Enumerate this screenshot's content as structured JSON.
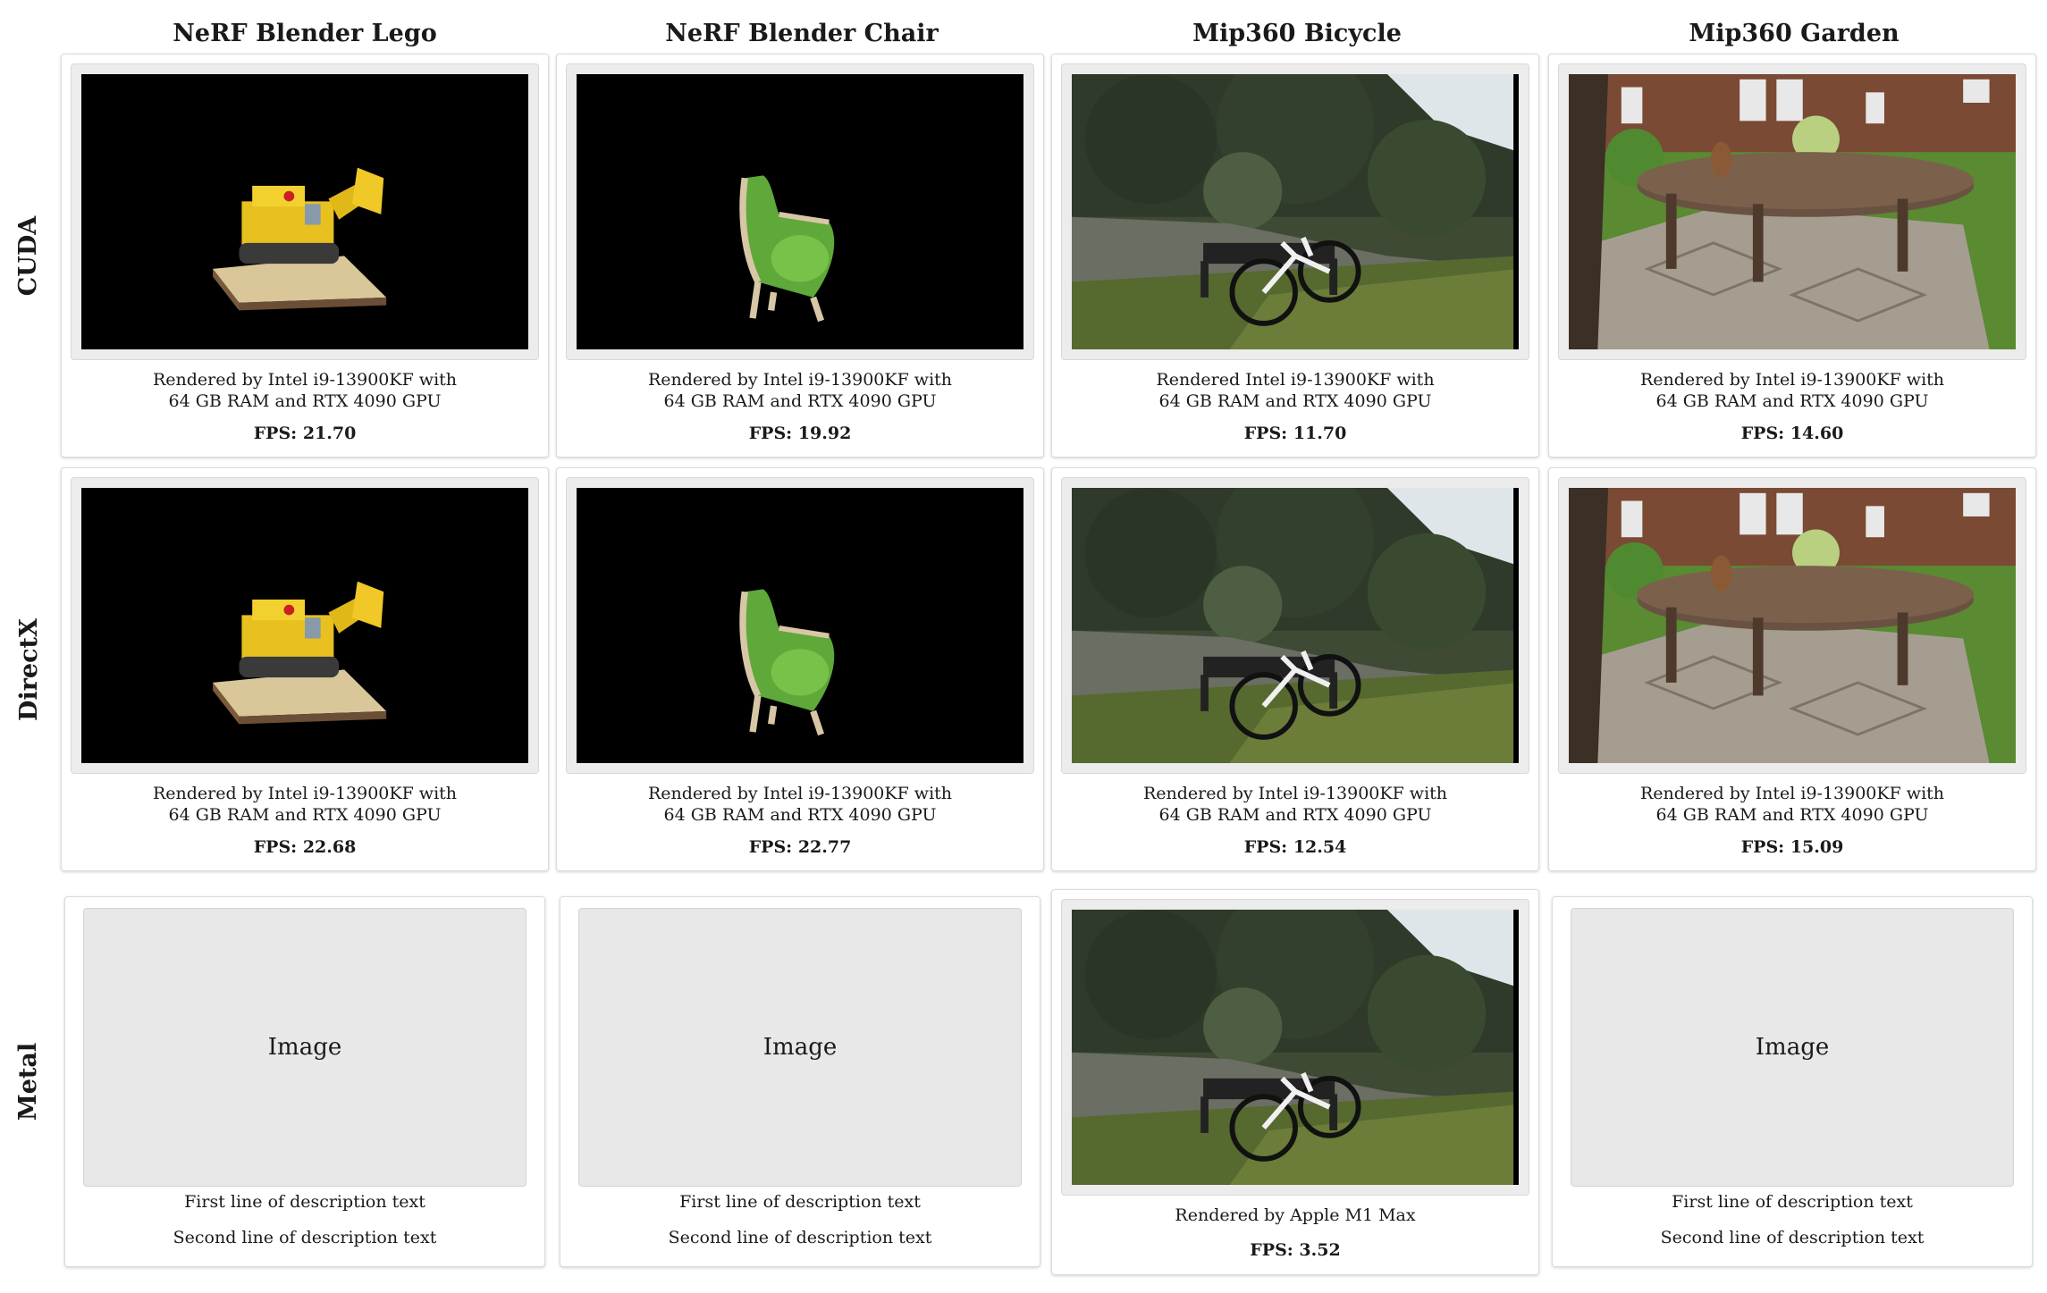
{
  "columns": [
    "NeRF Blender Lego",
    "NeRF Blender Chair",
    "Mip360 Bicycle",
    "Mip360 Garden"
  ],
  "rows": [
    "CUDA",
    "DirectX",
    "Metal"
  ],
  "cuda": [
    {
      "line1": "Rendered by Intel i9-13900KF with",
      "line2": "64 GB RAM and RTX 4090 GPU",
      "fps": "FPS: 21.70"
    },
    {
      "line1": "Rendered by Intel i9-13900KF with",
      "line2": "64 GB RAM and RTX 4090 GPU",
      "fps": "FPS: 19.92"
    },
    {
      "line1": "Rendered Intel i9-13900KF with",
      "line2": "64 GB RAM and RTX 4090 GPU",
      "fps": "FPS: 11.70"
    },
    {
      "line1": "Rendered by Intel i9-13900KF with",
      "line2": "64 GB RAM and RTX 4090 GPU",
      "fps": "FPS: 14.60"
    }
  ],
  "directx": [
    {
      "line1": "Rendered by Intel i9-13900KF with",
      "line2": "64 GB RAM and RTX 4090 GPU",
      "fps": "FPS: 22.68"
    },
    {
      "line1": "Rendered by Intel i9-13900KF with",
      "line2": "64 GB RAM and RTX 4090 GPU",
      "fps": "FPS: 22.77"
    },
    {
      "line1": "Rendered by Intel i9-13900KF with",
      "line2": "64 GB RAM and RTX 4090 GPU",
      "fps": "FPS: 12.54"
    },
    {
      "line1": "Rendered by Intel i9-13900KF with",
      "line2": "64 GB RAM and RTX 4090 GPU",
      "fps": "FPS: 15.09"
    }
  ],
  "metal": {
    "placeholder": {
      "label": "Image",
      "line1": "First line of description text",
      "line2": "Second line of description text"
    },
    "bicycle": {
      "line1": "Rendered by Apple M1 Max",
      "fps": "FPS: 3.52"
    }
  }
}
